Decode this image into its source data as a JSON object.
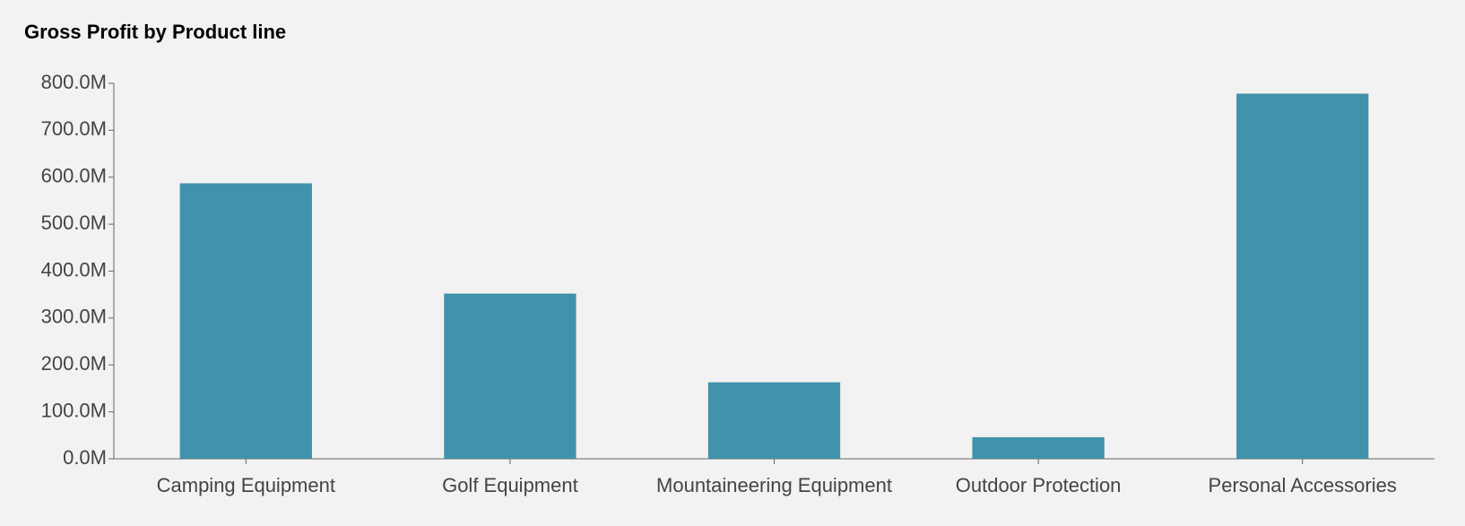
{
  "chart_data": {
    "type": "bar",
    "title": "Gross Profit by Product line",
    "categories": [
      "Camping Equipment",
      "Golf Equipment",
      "Mountaineering Equipment",
      "Outdoor Protection",
      "Personal Accessories"
    ],
    "values": [
      587000000,
      352000000,
      163000000,
      46000000,
      778000000
    ],
    "color": "#4192ab",
    "ylim": [
      0,
      800000000
    ],
    "yticks": [
      {
        "value": 0,
        "label": "0.0M"
      },
      {
        "value": 100000000,
        "label": "100.0M"
      },
      {
        "value": 200000000,
        "label": "200.0M"
      },
      {
        "value": 300000000,
        "label": "300.0M"
      },
      {
        "value": 400000000,
        "label": "400.0M"
      },
      {
        "value": 500000000,
        "label": "500.0M"
      },
      {
        "value": 600000000,
        "label": "600.0M"
      },
      {
        "value": 700000000,
        "label": "700.0M"
      },
      {
        "value": 800000000,
        "label": "800.0M"
      }
    ],
    "grid": false
  }
}
